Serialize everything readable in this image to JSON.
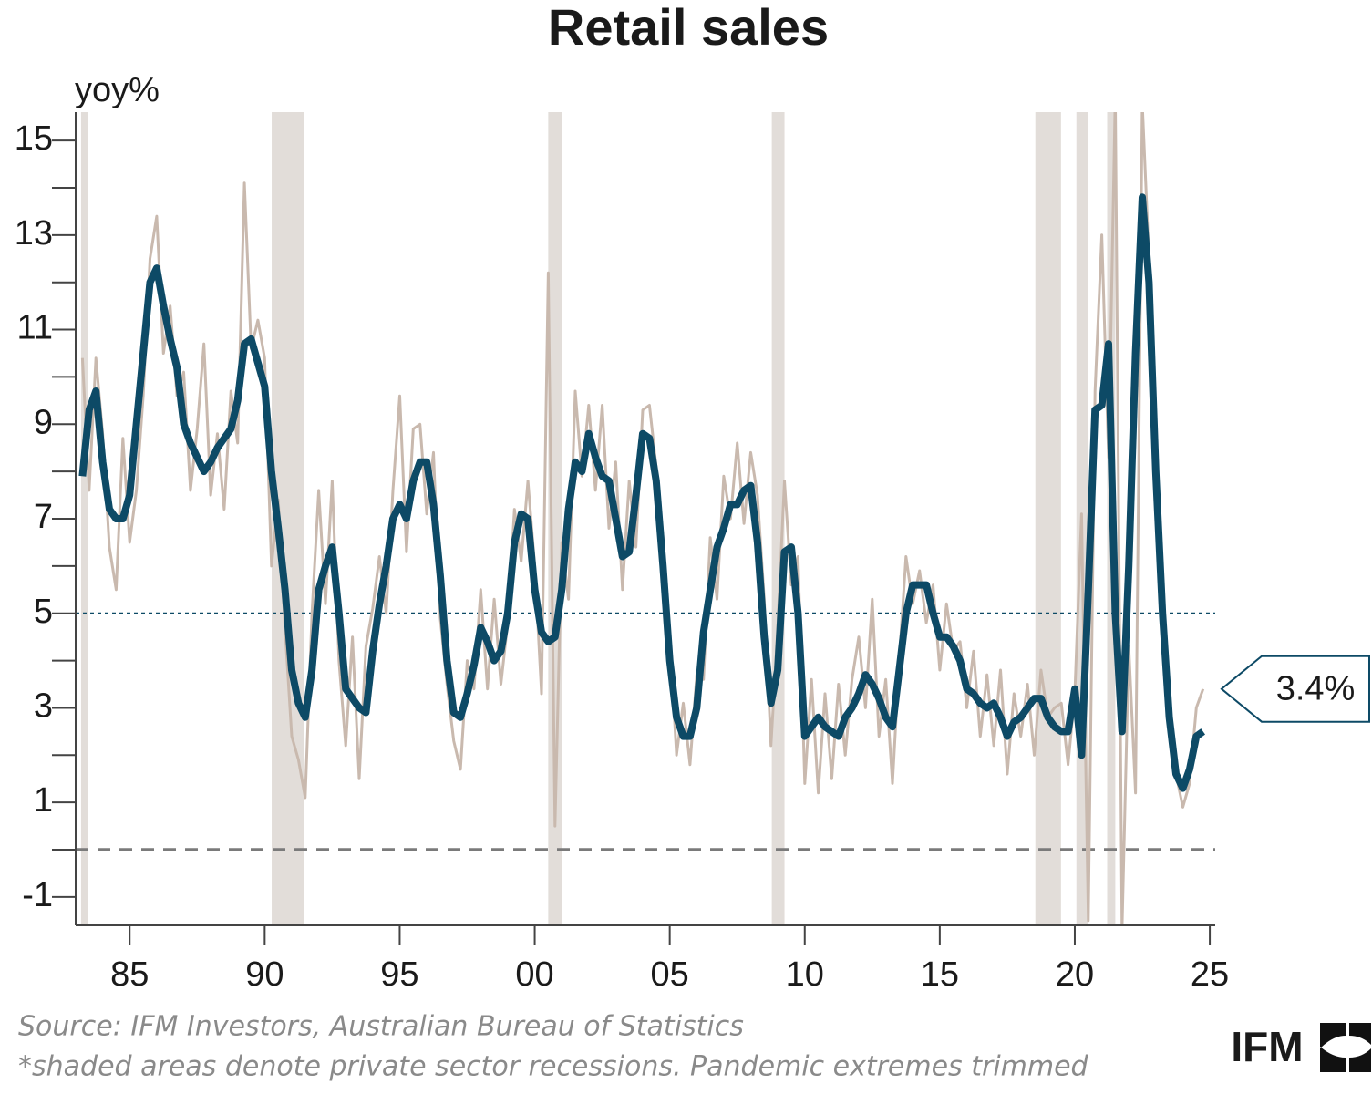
{
  "chart_data": {
    "type": "line",
    "title": "Retail sales",
    "y_axis_label": "yoy%",
    "source": "Source: IFM Investors, Australian Bureau of Statistics",
    "note": "*shaded areas denote private sector recessions. Pandemic extremes trimmed",
    "logo": "IFM",
    "xlim": [
      1983,
      2025.2
    ],
    "ylim": [
      -1.6,
      15.6
    ],
    "xticks": [
      {
        "value": 1985,
        "label": "85"
      },
      {
        "value": 1990,
        "label": "90"
      },
      {
        "value": 1995,
        "label": "95"
      },
      {
        "value": 2000,
        "label": "00"
      },
      {
        "value": 2005,
        "label": "05"
      },
      {
        "value": 2010,
        "label": "10"
      },
      {
        "value": 2015,
        "label": "15"
      },
      {
        "value": 2020,
        "label": "20"
      },
      {
        "value": 2025,
        "label": "25"
      }
    ],
    "yticks": [
      -1,
      1,
      3,
      5,
      7,
      9,
      11,
      13,
      15
    ],
    "yticks_minor": [
      0,
      2,
      4,
      6,
      8,
      10,
      12,
      14
    ],
    "reference_lines": [
      {
        "value": 5,
        "color": "#0d4a66",
        "style": "dotted"
      },
      {
        "value": 0,
        "color": "#7a7a7a",
        "style": "dashed"
      }
    ],
    "recessions": [
      [
        1983.2,
        1983.47
      ],
      [
        1990.26,
        1991.45
      ],
      [
        2000.5,
        2001.0
      ],
      [
        2008.78,
        2009.25
      ],
      [
        2018.54,
        2019.49
      ],
      [
        2020.06,
        2020.5
      ],
      [
        2021.2,
        2021.5
      ]
    ],
    "recession_color": "#e2ddd9",
    "annotation": {
      "text": "3.4%",
      "value": 3.4
    },
    "x": [
      1983.25,
      1983.5,
      1983.75,
      1984,
      1984.25,
      1984.5,
      1984.75,
      1985,
      1985.25,
      1985.5,
      1985.75,
      1986,
      1986.25,
      1986.5,
      1986.75,
      1987,
      1987.25,
      1987.5,
      1987.75,
      1988,
      1988.25,
      1988.5,
      1988.75,
      1989,
      1989.25,
      1989.5,
      1989.75,
      1990,
      1990.25,
      1990.5,
      1990.75,
      1991,
      1991.25,
      1991.5,
      1991.75,
      1992,
      1992.25,
      1992.5,
      1992.75,
      1993,
      1993.25,
      1993.5,
      1993.75,
      1994,
      1994.25,
      1994.5,
      1994.75,
      1995,
      1995.25,
      1995.5,
      1995.75,
      1996,
      1996.25,
      1996.5,
      1996.75,
      1997,
      1997.25,
      1997.5,
      1997.75,
      1998,
      1998.25,
      1998.5,
      1998.75,
      1999,
      1999.25,
      1999.5,
      1999.75,
      2000,
      2000.25,
      2000.5,
      2000.75,
      2001,
      2001.25,
      2001.5,
      2001.75,
      2002,
      2002.25,
      2002.5,
      2002.75,
      2003,
      2003.25,
      2003.5,
      2003.75,
      2004,
      2004.25,
      2004.5,
      2004.75,
      2005,
      2005.25,
      2005.5,
      2005.75,
      2006,
      2006.25,
      2006.5,
      2006.75,
      2007,
      2007.25,
      2007.5,
      2007.75,
      2008,
      2008.25,
      2008.5,
      2008.75,
      2009,
      2009.25,
      2009.5,
      2009.75,
      2010,
      2010.25,
      2010.5,
      2010.75,
      2011,
      2011.25,
      2011.5,
      2011.75,
      2012,
      2012.25,
      2012.5,
      2012.75,
      2013,
      2013.25,
      2013.5,
      2013.75,
      2014,
      2014.25,
      2014.5,
      2014.75,
      2015,
      2015.25,
      2015.5,
      2015.75,
      2016,
      2016.25,
      2016.5,
      2016.75,
      2017,
      2017.25,
      2017.5,
      2017.75,
      2018,
      2018.25,
      2018.5,
      2018.75,
      2019,
      2019.25,
      2019.5,
      2019.75,
      2020,
      2020.25,
      2020.5,
      2020.75,
      2021,
      2021.25,
      2021.5,
      2021.75,
      2022,
      2022.25,
      2022.5,
      2022.75,
      2023,
      2023.25,
      2023.5,
      2023.75,
      2024,
      2024.25,
      2024.5,
      2024.75
    ],
    "series": [
      {
        "color": "#c9b9ae",
        "width": 3,
        "values": [
          10.4,
          7.6,
          10.4,
          8.8,
          6.4,
          5.5,
          8.7,
          6.5,
          7.6,
          9.6,
          12.5,
          13.4,
          10.5,
          11.5,
          9.6,
          10.1,
          7.6,
          8.9,
          10.7,
          7.5,
          8.8,
          7.2,
          9.7,
          8.6,
          14.1,
          10.6,
          11.2,
          10.4,
          6.0,
          7.4,
          4.7,
          2.4,
          1.9,
          1.1,
          5.0,
          7.6,
          5.2,
          7.8,
          4.0,
          2.2,
          4.5,
          1.5,
          4.3,
          5.1,
          6.2,
          5.0,
          7.6,
          9.6,
          6.3,
          8.9,
          9.0,
          7.1,
          8.4,
          4.9,
          3.5,
          2.3,
          1.7,
          4.0,
          3.4,
          5.5,
          3.4,
          5.3,
          3.5,
          4.8,
          7.2,
          6.1,
          7.8,
          6.0,
          3.3,
          12.2,
          0.5,
          6.5,
          5.3,
          9.7,
          7.9,
          9.4,
          7.6,
          9.4,
          6.8,
          8.2,
          5.5,
          7.8,
          6.4,
          9.3,
          9.4,
          8.1,
          6.6,
          4.5,
          2.0,
          3.1,
          1.8,
          3.7,
          3.6,
          6.6,
          5.3,
          7.9,
          7.0,
          8.6,
          6.9,
          8.4,
          7.5,
          5.3,
          2.2,
          4.7,
          7.8,
          5.6,
          6.2,
          1.4,
          3.6,
          1.2,
          3.3,
          1.5,
          3.5,
          2.0,
          3.6,
          4.5,
          3.0,
          5.3,
          2.4,
          3.6,
          1.4,
          4.0,
          6.2,
          5.2,
          5.9,
          4.8,
          5.6,
          3.8,
          5.2,
          4.2,
          4.4,
          3.0,
          4.2,
          2.4,
          3.7,
          2.2,
          3.8,
          1.6,
          3.3,
          2.4,
          3.5,
          2.0,
          3.8,
          2.8,
          3.0,
          3.1,
          1.8,
          3.3,
          7.1,
          -1.5,
          9.7,
          13.0,
          8.3,
          16.0,
          -1.7,
          4.3,
          1.2,
          15.8,
          12.5,
          8.0,
          5.5,
          3.2,
          1.6,
          0.9,
          1.4,
          3.0,
          3.4
        ]
      },
      {
        "color": "#0d4a66",
        "width": 8,
        "values": [
          7.9,
          9.3,
          9.7,
          8.2,
          7.2,
          7.0,
          7.0,
          7.5,
          9.0,
          10.5,
          12.0,
          12.3,
          11.5,
          10.8,
          10.2,
          9.0,
          8.6,
          8.3,
          8.0,
          8.2,
          8.5,
          8.7,
          8.9,
          9.5,
          10.7,
          10.8,
          10.3,
          9.8,
          8.0,
          6.8,
          5.5,
          3.8,
          3.1,
          2.8,
          3.8,
          5.5,
          6.0,
          6.4,
          5.0,
          3.4,
          3.2,
          3.0,
          2.9,
          4.2,
          5.2,
          6.0,
          7.0,
          7.3,
          7.0,
          7.8,
          8.2,
          8.2,
          7.3,
          5.8,
          4.0,
          2.9,
          2.8,
          3.3,
          3.9,
          4.7,
          4.4,
          4.0,
          4.2,
          5.0,
          6.5,
          7.1,
          7.0,
          5.5,
          4.6,
          4.4,
          4.5,
          5.5,
          7.2,
          8.2,
          8.0,
          8.8,
          8.3,
          7.9,
          7.8,
          7.0,
          6.2,
          6.3,
          7.5,
          8.8,
          8.7,
          7.8,
          6.0,
          4.0,
          2.8,
          2.4,
          2.4,
          3.0,
          4.6,
          5.5,
          6.4,
          6.8,
          7.3,
          7.3,
          7.6,
          7.7,
          6.5,
          4.5,
          3.1,
          3.8,
          6.3,
          6.4,
          5.0,
          2.4,
          2.6,
          2.8,
          2.6,
          2.5,
          2.4,
          2.8,
          3.0,
          3.3,
          3.7,
          3.5,
          3.2,
          2.8,
          2.6,
          3.8,
          5.0,
          5.6,
          5.6,
          5.6,
          5.0,
          4.5,
          4.5,
          4.3,
          4.0,
          3.4,
          3.3,
          3.1,
          3.0,
          3.1,
          2.8,
          2.4,
          2.7,
          2.8,
          3.0,
          3.2,
          3.2,
          2.8,
          2.6,
          2.5,
          2.5,
          3.4,
          2.0,
          5.5,
          9.3,
          9.4,
          10.7,
          5.0,
          2.5,
          6.0,
          10.5,
          13.8,
          12.0,
          8.0,
          5.0,
          2.8,
          1.6,
          1.3,
          1.7,
          2.4,
          2.5
        ]
      }
    ]
  }
}
